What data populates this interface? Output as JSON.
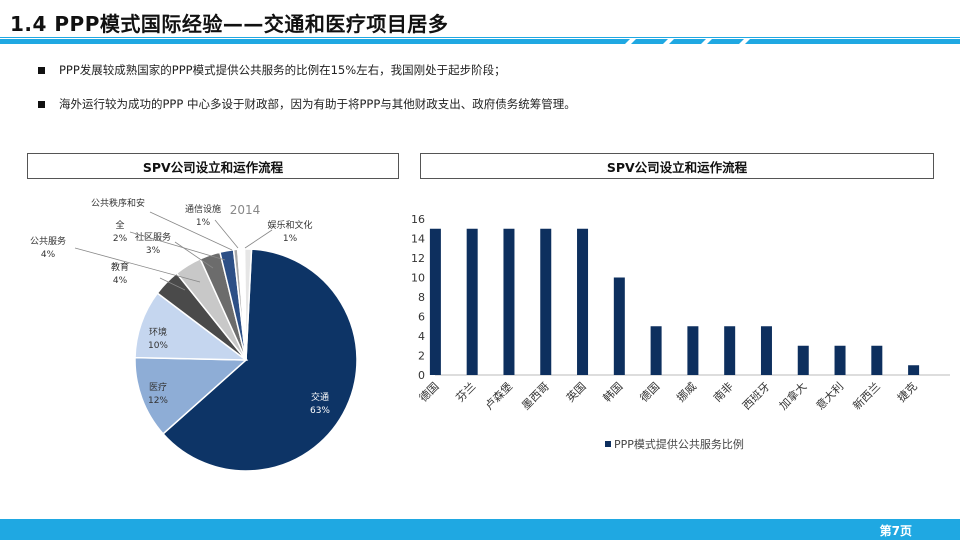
{
  "header": {
    "title": "1.4 PPP模式国际经验——交通和医疗项目居多"
  },
  "bullets": [
    "PPP发展较成熟国家的PPP模式提供公共服务的比例在15%左右，我国刚处于起步阶段；",
    "海外运行较为成功的PPP 中心多设于财政部，因为有助于将PPP与其他财政支出、政府债务统筹管理。"
  ],
  "left_panel": {
    "title": "SPV公司设立和运作流程"
  },
  "right_panel": {
    "title": "SPV公司设立和运作流程"
  },
  "footer": {
    "page": "第7页"
  },
  "colors": {
    "accent": "#1fa8e2",
    "bar": "#0d2f5e"
  },
  "chart_data": [
    {
      "type": "pie",
      "title": "2014",
      "slices": [
        {
          "label": "交通",
          "value": 63,
          "pct": "63%",
          "color": "#0d3466"
        },
        {
          "label": "医疗",
          "value": 12,
          "pct": "12%",
          "color": "#8eadd6"
        },
        {
          "label": "环境",
          "value": 10,
          "pct": "10%",
          "color": "#c5d6ef"
        },
        {
          "label": "教育",
          "value": 4,
          "pct": "4%",
          "color": "#4a4a4a"
        },
        {
          "label": "公共服务",
          "value": 4,
          "pct": "4%",
          "color": "#c8c8c8"
        },
        {
          "label": "社区服务",
          "value": 3,
          "pct": "3%",
          "color": "#6c6c6c"
        },
        {
          "label": "全",
          "value": 2,
          "pct": "2%",
          "color": "#2c4f86"
        },
        {
          "label": "公共秩序和安",
          "value": 0,
          "pct": "",
          "color": "#a9a9a9"
        },
        {
          "label": "通信设施",
          "value": 1,
          "pct": "1%",
          "color": "#ffffff"
        },
        {
          "label": "娱乐和文化",
          "value": 1,
          "pct": "1%",
          "color": "#e6e6e6"
        }
      ]
    },
    {
      "type": "bar",
      "categories": [
        "德国",
        "芬兰",
        "卢森堡",
        "墨西哥",
        "英国",
        "韩国",
        "德国",
        "挪威",
        "南非",
        "西班牙",
        "加拿大",
        "意大利",
        "新西兰",
        "捷克"
      ],
      "series": [
        {
          "name": "PPP模式提供公共服务比例",
          "values": [
            15,
            15,
            15,
            15,
            15,
            10,
            5,
            5,
            5,
            5,
            3,
            3,
            3,
            1
          ]
        }
      ],
      "ylim": [
        0,
        16
      ],
      "yticks": [
        0,
        2,
        4,
        6,
        8,
        10,
        12,
        14,
        16
      ],
      "grid": false,
      "legend": "bottom"
    }
  ]
}
